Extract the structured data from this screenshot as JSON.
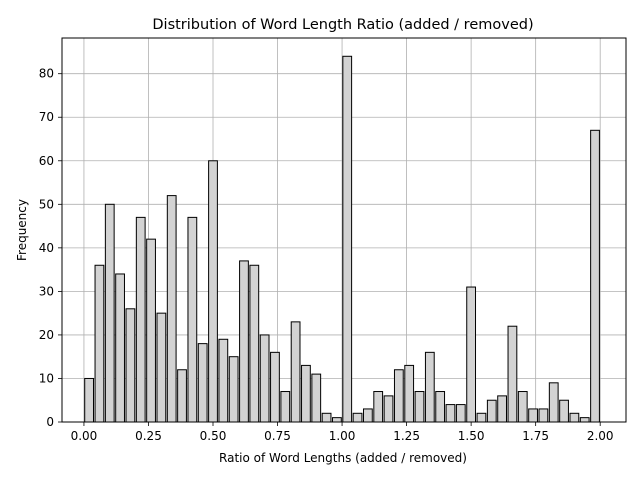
{
  "chart_data": {
    "type": "bar",
    "title": "Distribution of Word Length Ratio (added / removed)",
    "xlabel": "Ratio of Word Lengths (added / removed)",
    "ylabel": "Frequency",
    "xlim": [
      -0.085,
      2.1
    ],
    "ylim": [
      0,
      88.2
    ],
    "x_ticks": [
      0.0,
      0.25,
      0.5,
      0.75,
      1.0,
      1.25,
      1.5,
      1.75,
      2.0
    ],
    "x_tick_labels": [
      "0.00",
      "0.25",
      "0.50",
      "0.75",
      "1.00",
      "1.25",
      "1.50",
      "1.75",
      "2.00"
    ],
    "y_ticks": [
      0,
      10,
      20,
      30,
      40,
      50,
      60,
      70,
      80
    ],
    "y_tick_labels": [
      "0",
      "10",
      "20",
      "30",
      "40",
      "50",
      "60",
      "70",
      "80"
    ],
    "grid": true,
    "bar_color": "#d3d3d3",
    "edge_color": "#000000",
    "bin_start": 0.0,
    "bin_width": 0.04,
    "bar_width_fraction": 0.85,
    "values": [
      10,
      36,
      50,
      34,
      26,
      47,
      42,
      25,
      52,
      12,
      47,
      18,
      60,
      19,
      15,
      37,
      36,
      20,
      16,
      7,
      23,
      13,
      11,
      2,
      1,
      84,
      2,
      3,
      7,
      6,
      12,
      13,
      7,
      16,
      7,
      4,
      4,
      31,
      2,
      5,
      6,
      22,
      7,
      3,
      3,
      9,
      5,
      2,
      1,
      67
    ]
  }
}
